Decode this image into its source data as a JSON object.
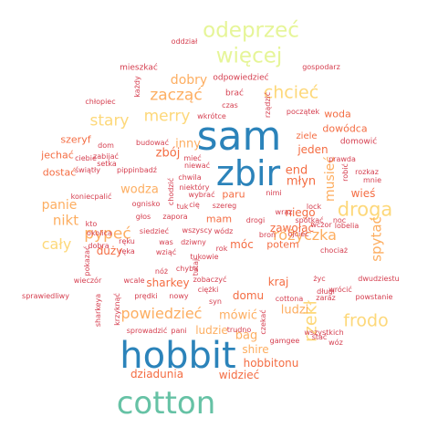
{
  "palette": {
    "blue": "#2b83ba",
    "teal": "#66c2a5",
    "olive": "#c7d98a",
    "lime": "#e6f598",
    "yellow": "#fdd87a",
    "peach": "#fdae61",
    "orange": "#f46d43",
    "red": "#d53e4f"
  },
  "words": [
    {
      "text": "sam",
      "color": "blue"
    },
    {
      "text": "hobbit",
      "color": "blue"
    },
    {
      "text": "zbir",
      "color": "blue"
    },
    {
      "text": "cotton",
      "color": "teal"
    },
    {
      "text": "odeprzeć",
      "color": "lime"
    },
    {
      "text": "więcej",
      "color": "lime"
    },
    {
      "text": "droga",
      "color": "yellow"
    },
    {
      "text": "frodo",
      "color": "yellow"
    },
    {
      "text": "rzekł",
      "color": "yellow"
    },
    {
      "text": "chcieć",
      "color": "yellow"
    },
    {
      "text": "merry",
      "color": "yellow"
    },
    {
      "text": "stary",
      "color": "yellow"
    },
    {
      "text": "zacząć",
      "color": "peach"
    },
    {
      "text": "pypeć",
      "color": "peach"
    },
    {
      "text": "cały",
      "color": "yellow"
    },
    {
      "text": "różyczka",
      "color": "peach"
    },
    {
      "text": "powiedzieć",
      "color": "peach"
    },
    {
      "text": "spytać",
      "color": "peach"
    },
    {
      "text": "musieć",
      "color": "peach"
    },
    {
      "text": "nikt",
      "color": "peach"
    },
    {
      "text": "panie",
      "color": "peach"
    },
    {
      "text": "dobry",
      "color": "peach"
    },
    {
      "text": "inny",
      "color": "peach"
    },
    {
      "text": "wodza",
      "color": "peach"
    },
    {
      "text": "mówić",
      "color": "peach"
    },
    {
      "text": "ludzi",
      "color": "peach"
    },
    {
      "text": "bag",
      "color": "peach"
    },
    {
      "text": "shire",
      "color": "peach"
    },
    {
      "text": "ludzie",
      "color": "peach"
    },
    {
      "text": "dziadunia",
      "color": "orange"
    },
    {
      "text": "widzieć",
      "color": "orange"
    },
    {
      "text": "hobbitonu",
      "color": "orange"
    },
    {
      "text": "end",
      "color": "orange"
    },
    {
      "text": "młyn",
      "color": "orange"
    },
    {
      "text": "zbój",
      "color": "orange"
    },
    {
      "text": "jeden",
      "color": "orange"
    },
    {
      "text": "wieś",
      "color": "orange"
    },
    {
      "text": "niego",
      "color": "orange"
    },
    {
      "text": "potem",
      "color": "orange"
    },
    {
      "text": "móc",
      "color": "orange"
    },
    {
      "text": "duży",
      "color": "orange"
    },
    {
      "text": "domu",
      "color": "orange"
    },
    {
      "text": "kraj",
      "color": "orange"
    },
    {
      "text": "sharkey",
      "color": "orange"
    },
    {
      "text": "zawołać",
      "color": "orange"
    },
    {
      "text": "woda",
      "color": "orange"
    },
    {
      "text": "dowódca",
      "color": "orange"
    },
    {
      "text": "szeryf",
      "color": "orange"
    },
    {
      "text": "jechać",
      "color": "orange"
    },
    {
      "text": "dostać",
      "color": "orange"
    },
    {
      "text": "mam",
      "color": "orange"
    },
    {
      "text": "paru",
      "color": "orange"
    },
    {
      "text": "ziele",
      "color": "orange"
    },
    {
      "text": "domowić",
      "color": "red"
    },
    {
      "text": "wczor",
      "color": "red"
    },
    {
      "text": "mieszkać",
      "color": "red"
    },
    {
      "text": "odpowiedzieć",
      "color": "red"
    },
    {
      "text": "brać",
      "color": "red"
    },
    {
      "text": "czas",
      "color": "red"
    },
    {
      "text": "wkrótce",
      "color": "red"
    },
    {
      "text": "początek",
      "color": "red"
    },
    {
      "text": "gospodarz",
      "color": "red"
    },
    {
      "text": "oddział",
      "color": "red"
    },
    {
      "text": "każdy",
      "color": "red"
    },
    {
      "text": "rządzić",
      "color": "red"
    },
    {
      "text": "chłopiec",
      "color": "red"
    },
    {
      "text": "zabijać",
      "color": "red"
    },
    {
      "text": "ciebie",
      "color": "red"
    },
    {
      "text": "setka",
      "color": "red"
    },
    {
      "text": "dom",
      "color": "red"
    },
    {
      "text": "budować",
      "color": "red"
    },
    {
      "text": "mieć",
      "color": "red"
    },
    {
      "text": "niewać",
      "color": "red"
    },
    {
      "text": "chwila",
      "color": "red"
    },
    {
      "text": "niektóry",
      "color": "red"
    },
    {
      "text": "świątły",
      "color": "red"
    },
    {
      "text": "pippinbadź",
      "color": "red"
    },
    {
      "text": "koniecpalić",
      "color": "red"
    },
    {
      "text": "ognisko",
      "color": "red"
    },
    {
      "text": "głos",
      "color": "red"
    },
    {
      "text": "chodzić",
      "color": "red"
    },
    {
      "text": "wybrać",
      "color": "red"
    },
    {
      "text": "tuk",
      "color": "red"
    },
    {
      "text": "cię",
      "color": "red"
    },
    {
      "text": "szereg",
      "color": "red"
    },
    {
      "text": "nimi",
      "color": "red"
    },
    {
      "text": "wraz",
      "color": "red"
    },
    {
      "text": "lock",
      "color": "red"
    },
    {
      "text": "drogi",
      "color": "red"
    },
    {
      "text": "spotkać",
      "color": "red"
    },
    {
      "text": "noc",
      "color": "red"
    },
    {
      "text": "lobelia",
      "color": "red"
    },
    {
      "text": "prawda",
      "color": "red"
    },
    {
      "text": "rozkaz",
      "color": "red"
    },
    {
      "text": "mnie",
      "color": "red"
    },
    {
      "text": "robić",
      "color": "red"
    },
    {
      "text": "zapora",
      "color": "red"
    },
    {
      "text": "kto",
      "color": "red"
    },
    {
      "text": "okolica",
      "color": "red"
    },
    {
      "text": "dobra",
      "color": "red"
    },
    {
      "text": "ręku",
      "color": "red"
    },
    {
      "text": "ręka",
      "color": "red"
    },
    {
      "text": "siedzieć",
      "color": "red"
    },
    {
      "text": "wszyscy",
      "color": "red"
    },
    {
      "text": "was",
      "color": "red"
    },
    {
      "text": "dziwny",
      "color": "red"
    },
    {
      "text": "wódz",
      "color": "red"
    },
    {
      "text": "broń",
      "color": "red"
    },
    {
      "text": "ojciec",
      "color": "red"
    },
    {
      "text": "tukowie",
      "color": "red"
    },
    {
      "text": "rok",
      "color": "red"
    },
    {
      "text": "wziąć",
      "color": "red"
    },
    {
      "text": "chociaż",
      "color": "red"
    },
    {
      "text": "pokazać",
      "color": "red"
    },
    {
      "text": "chyba",
      "color": "red"
    },
    {
      "text": "tutaj",
      "color": "red"
    },
    {
      "text": "nóż",
      "color": "red"
    },
    {
      "text": "wieczór",
      "color": "red"
    },
    {
      "text": "zobaczyć",
      "color": "red"
    },
    {
      "text": "życ",
      "color": "red"
    },
    {
      "text": "długi",
      "color": "red"
    },
    {
      "text": "dwudziestu",
      "color": "red"
    },
    {
      "text": "wcale",
      "color": "red"
    },
    {
      "text": "wrócić",
      "color": "red"
    },
    {
      "text": "sprawiedliwy",
      "color": "red"
    },
    {
      "text": "krzyknąć",
      "color": "red"
    },
    {
      "text": "prędki",
      "color": "red"
    },
    {
      "text": "nowy",
      "color": "red"
    },
    {
      "text": "ciężki",
      "color": "red"
    },
    {
      "text": "syn",
      "color": "red"
    },
    {
      "text": "zaraz",
      "color": "red"
    },
    {
      "text": "powstanie",
      "color": "red"
    },
    {
      "text": "cottona",
      "color": "red"
    },
    {
      "text": "sharkeya",
      "color": "red"
    },
    {
      "text": "sprowadzić",
      "color": "red"
    },
    {
      "text": "pani",
      "color": "red"
    },
    {
      "text": "trudno",
      "color": "red"
    },
    {
      "text": "czekać",
      "color": "red"
    },
    {
      "text": "stać",
      "color": "red"
    },
    {
      "text": "wszystkich",
      "color": "red"
    },
    {
      "text": "gamgee",
      "color": "red"
    },
    {
      "text": "wóz",
      "color": "red"
    }
  ]
}
